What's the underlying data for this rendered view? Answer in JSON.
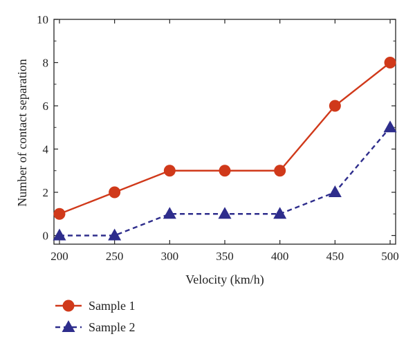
{
  "chart_data": {
    "type": "line",
    "title": "",
    "xlabel": "Velocity (km/h)",
    "ylabel": "Number of contact separation",
    "x": [
      200,
      250,
      300,
      350,
      400,
      450,
      500
    ],
    "xlim": [
      195,
      505
    ],
    "ylim": [
      -0.4,
      10
    ],
    "xticks": [
      "200",
      "250",
      "300",
      "350",
      "400",
      "450",
      "500"
    ],
    "yticks": [
      "0",
      "2",
      "4",
      "6",
      "8",
      "10"
    ],
    "grid": false,
    "legend_position": "bottom-left, below plot",
    "series": [
      {
        "name": "Sample 1",
        "values": [
          1,
          2,
          3,
          3,
          3,
          6,
          8
        ],
        "color": "#d0391a",
        "marker": "circle",
        "line": "solid"
      },
      {
        "name": "Sample 2",
        "values": [
          0,
          0,
          1,
          1,
          1,
          2,
          5
        ],
        "color": "#2e2d8c",
        "marker": "triangle",
        "line": "dashed"
      }
    ]
  }
}
